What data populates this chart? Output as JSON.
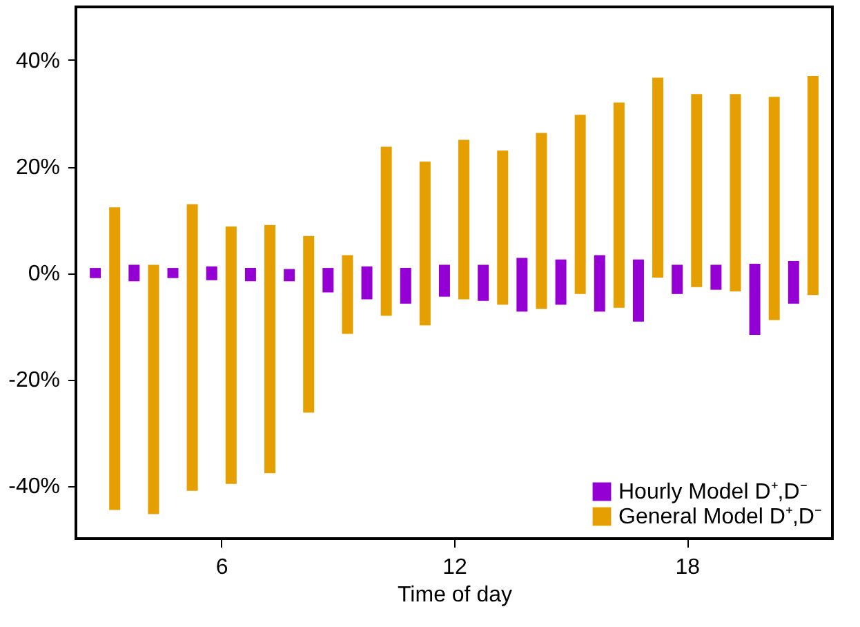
{
  "chart_data": {
    "type": "bar",
    "xlabel": "Time of day",
    "xlim": [
      2.25,
      21.75
    ],
    "xticks": [
      6,
      12,
      18
    ],
    "ylim": [
      -50,
      50
    ],
    "yticks": [
      {
        "value": -40,
        "label": "-40%"
      },
      {
        "value": -20,
        "label": "-20%"
      },
      {
        "value": 0,
        "label": "0%"
      },
      {
        "value": 20,
        "label": "20%"
      },
      {
        "value": 40,
        "label": "40%"
      }
    ],
    "grid": false,
    "legend": "bottom right",
    "series": [
      {
        "name": "Hourly Model D⁺,D⁻",
        "color": "#9400d3",
        "x": [
          2.75,
          3.75,
          4.75,
          5.75,
          6.75,
          7.75,
          8.75,
          9.75,
          10.75,
          11.75,
          12.75,
          13.75,
          14.75,
          15.75,
          16.75,
          17.75,
          18.75,
          19.75,
          20.75
        ],
        "base": [
          -1.0,
          -1.6,
          -1.0,
          -1.4,
          -1.6,
          -1.6,
          -3.7,
          -5.0,
          -5.8,
          -4.5,
          -5.3,
          -7.3,
          -6.0,
          -7.3,
          -9.2,
          -4.0,
          -3.2,
          -11.7,
          -5.8
        ],
        "values": [
          1.9,
          3.1,
          1.9,
          2.6,
          2.5,
          2.3,
          4.6,
          6.2,
          6.7,
          6.0,
          6.8,
          10.1,
          8.5,
          10.6,
          11.7,
          5.5,
          4.7,
          13.4,
          8.0
        ]
      },
      {
        "name": "General Model D⁺,D⁻",
        "color": "#e69f00",
        "x": [
          3.25,
          4.25,
          5.25,
          6.25,
          7.25,
          8.25,
          9.25,
          10.25,
          11.25,
          12.25,
          13.25,
          14.25,
          15.25,
          16.25,
          17.25,
          18.25,
          19.25,
          20.25,
          21.25
        ],
        "base": [
          -44.6,
          -45.4,
          -41.0,
          -39.7,
          -37.7,
          -26.3,
          -11.5,
          -8.1,
          -9.9,
          -5.0,
          -6.0,
          -6.8,
          -4.0,
          -6.6,
          -0.9,
          -2.7,
          -3.5,
          -8.9,
          -4.2
        ],
        "values": [
          56.9,
          46.9,
          53.9,
          48.4,
          46.7,
          33.2,
          14.8,
          31.8,
          30.8,
          30.0,
          29.0,
          33.1,
          33.7,
          38.6,
          37.6,
          36.3,
          37.1,
          42.0,
          41.2
        ]
      }
    ]
  }
}
